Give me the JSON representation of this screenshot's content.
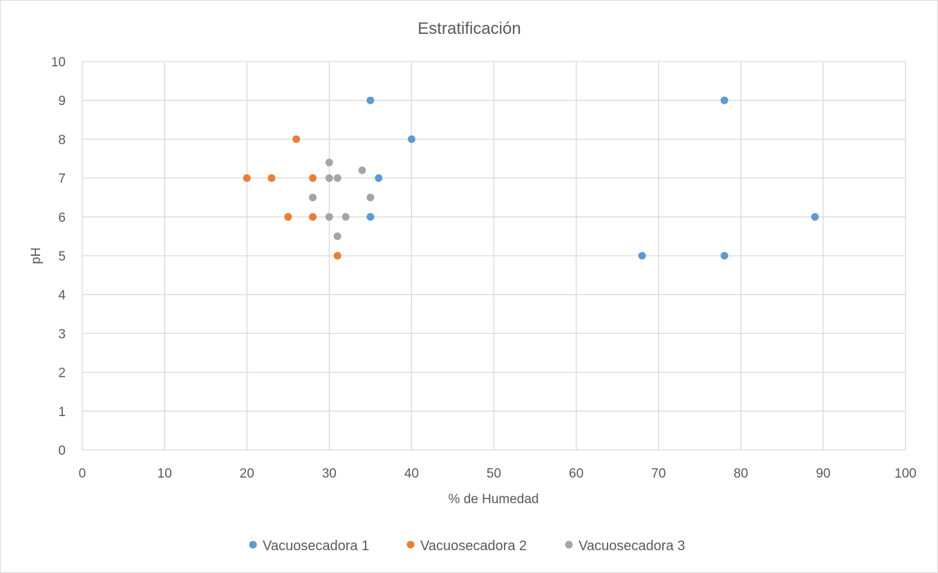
{
  "chart_data": {
    "type": "scatter",
    "title": "Estratificación",
    "xlabel": "% de Humedad",
    "ylabel": "pH",
    "xlim": [
      0,
      100
    ],
    "ylim": [
      0,
      10
    ],
    "x_ticks": [
      "0",
      "10",
      "20",
      "30",
      "40",
      "50",
      "60",
      "70",
      "80",
      "90",
      "100"
    ],
    "y_ticks": [
      "0",
      "1",
      "2",
      "3",
      "4",
      "5",
      "6",
      "7",
      "8",
      "9",
      "10"
    ],
    "grid": true,
    "legend_position": "bottom",
    "series": [
      {
        "name": "Vacuosecadora 1",
        "color": "#5b9bd5",
        "points": [
          [
            35,
            9
          ],
          [
            78,
            9
          ],
          [
            40,
            8
          ],
          [
            36,
            7
          ],
          [
            35,
            6
          ],
          [
            89,
            6
          ],
          [
            68,
            5
          ],
          [
            78,
            5
          ]
        ]
      },
      {
        "name": "Vacuosecadora 2",
        "color": "#ed7d31",
        "points": [
          [
            26,
            8
          ],
          [
            20,
            7
          ],
          [
            23,
            7
          ],
          [
            28,
            7
          ],
          [
            25,
            6
          ],
          [
            28,
            6
          ],
          [
            31,
            5
          ]
        ]
      },
      {
        "name": "Vacuosecadora 3",
        "color": "#a5a5a5",
        "points": [
          [
            30,
            7.4
          ],
          [
            34,
            7.2
          ],
          [
            30,
            7
          ],
          [
            31,
            7
          ],
          [
            28,
            6.5
          ],
          [
            35,
            6.5
          ],
          [
            30,
            6
          ],
          [
            32,
            6
          ],
          [
            31,
            5.5
          ]
        ]
      }
    ]
  }
}
